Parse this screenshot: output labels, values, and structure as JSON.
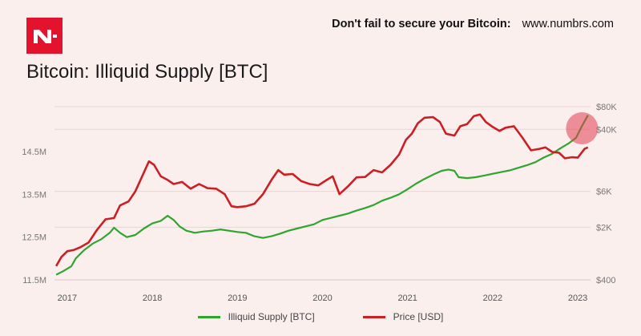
{
  "header": {
    "logo_icon": "numbrs-logo-icon",
    "promo_text": "Don't fail to secure your Bitcoin:",
    "promo_url": "www.numbrs.com",
    "brand_color": "#e3122d"
  },
  "chart_data": {
    "type": "line",
    "title": "Bitcoin: Illiquid Supply [BTC]",
    "x_tick_labels": [
      "2017",
      "2018",
      "2019",
      "2020",
      "2021",
      "2022",
      "2023"
    ],
    "x_range": [
      2016.85,
      2023.15
    ],
    "y_left": {
      "label": "",
      "ticks": [
        11.5,
        12.5,
        13.5,
        14.5
      ],
      "tick_labels": [
        "11.5M",
        "12.5M",
        "13.5M",
        "14.5M"
      ],
      "range": [
        11.5,
        15.55
      ],
      "unit": "M BTC"
    },
    "y_right": {
      "label": "",
      "scale": "log",
      "ticks": [
        400,
        2000,
        6000,
        40000,
        80000
      ],
      "tick_labels": [
        "$400",
        "$2K",
        "$6K",
        "$40K",
        "$80K"
      ],
      "range": [
        400,
        80000
      ]
    },
    "grid": true,
    "series": [
      {
        "name": "Illiquid Supply [BTC]",
        "color": "#2ea62e",
        "axis": "left",
        "points": [
          [
            2016.87,
            11.62
          ],
          [
            2016.95,
            11.7
          ],
          [
            2017.05,
            11.82
          ],
          [
            2017.1,
            12.0
          ],
          [
            2017.2,
            12.2
          ],
          [
            2017.3,
            12.35
          ],
          [
            2017.4,
            12.45
          ],
          [
            2017.5,
            12.6
          ],
          [
            2017.55,
            12.72
          ],
          [
            2017.62,
            12.6
          ],
          [
            2017.7,
            12.5
          ],
          [
            2017.8,
            12.55
          ],
          [
            2017.9,
            12.7
          ],
          [
            2018.0,
            12.82
          ],
          [
            2018.1,
            12.88
          ],
          [
            2018.18,
            13.0
          ],
          [
            2018.25,
            12.9
          ],
          [
            2018.32,
            12.75
          ],
          [
            2018.4,
            12.65
          ],
          [
            2018.5,
            12.6
          ],
          [
            2018.6,
            12.63
          ],
          [
            2018.7,
            12.65
          ],
          [
            2018.8,
            12.68
          ],
          [
            2018.9,
            12.65
          ],
          [
            2019.0,
            12.62
          ],
          [
            2019.1,
            12.6
          ],
          [
            2019.2,
            12.52
          ],
          [
            2019.3,
            12.48
          ],
          [
            2019.4,
            12.52
          ],
          [
            2019.5,
            12.58
          ],
          [
            2019.6,
            12.65
          ],
          [
            2019.7,
            12.7
          ],
          [
            2019.8,
            12.75
          ],
          [
            2019.9,
            12.8
          ],
          [
            2020.0,
            12.9
          ],
          [
            2020.1,
            12.95
          ],
          [
            2020.2,
            13.0
          ],
          [
            2020.3,
            13.05
          ],
          [
            2020.4,
            13.12
          ],
          [
            2020.5,
            13.18
          ],
          [
            2020.6,
            13.25
          ],
          [
            2020.7,
            13.35
          ],
          [
            2020.8,
            13.42
          ],
          [
            2020.9,
            13.5
          ],
          [
            2021.0,
            13.62
          ],
          [
            2021.1,
            13.75
          ],
          [
            2021.2,
            13.86
          ],
          [
            2021.3,
            13.96
          ],
          [
            2021.4,
            14.05
          ],
          [
            2021.48,
            14.08
          ],
          [
            2021.55,
            14.05
          ],
          [
            2021.6,
            13.9
          ],
          [
            2021.7,
            13.88
          ],
          [
            2021.8,
            13.9
          ],
          [
            2021.9,
            13.94
          ],
          [
            2022.0,
            13.98
          ],
          [
            2022.1,
            14.02
          ],
          [
            2022.2,
            14.06
          ],
          [
            2022.3,
            14.12
          ],
          [
            2022.4,
            14.18
          ],
          [
            2022.5,
            14.25
          ],
          [
            2022.6,
            14.36
          ],
          [
            2022.7,
            14.45
          ],
          [
            2022.8,
            14.58
          ],
          [
            2022.9,
            14.7
          ],
          [
            2022.98,
            14.82
          ],
          [
            2023.05,
            15.1
          ],
          [
            2023.12,
            15.35
          ]
        ]
      },
      {
        "name": "Price [USD]",
        "color": "#cc1f24",
        "axis": "right",
        "points": [
          [
            2016.87,
            610
          ],
          [
            2016.93,
            800
          ],
          [
            2017.0,
            960
          ],
          [
            2017.08,
            1000
          ],
          [
            2017.15,
            1080
          ],
          [
            2017.25,
            1250
          ],
          [
            2017.35,
            1850
          ],
          [
            2017.45,
            2550
          ],
          [
            2017.55,
            2650
          ],
          [
            2017.62,
            3900
          ],
          [
            2017.72,
            4400
          ],
          [
            2017.8,
            6000
          ],
          [
            2017.88,
            9500
          ],
          [
            2017.96,
            15000
          ],
          [
            2018.02,
            13500
          ],
          [
            2018.1,
            9500
          ],
          [
            2018.18,
            8500
          ],
          [
            2018.25,
            7500
          ],
          [
            2018.35,
            8000
          ],
          [
            2018.45,
            6500
          ],
          [
            2018.55,
            7500
          ],
          [
            2018.65,
            6600
          ],
          [
            2018.75,
            6500
          ],
          [
            2018.85,
            5500
          ],
          [
            2018.93,
            3800
          ],
          [
            2019.0,
            3700
          ],
          [
            2019.1,
            3800
          ],
          [
            2019.2,
            4100
          ],
          [
            2019.3,
            5500
          ],
          [
            2019.4,
            8500
          ],
          [
            2019.48,
            11500
          ],
          [
            2019.55,
            10000
          ],
          [
            2019.65,
            10200
          ],
          [
            2019.75,
            8200
          ],
          [
            2019.85,
            7500
          ],
          [
            2019.95,
            7200
          ],
          [
            2020.05,
            8500
          ],
          [
            2020.12,
            9500
          ],
          [
            2020.2,
            5500
          ],
          [
            2020.3,
            7000
          ],
          [
            2020.4,
            9200
          ],
          [
            2020.5,
            9300
          ],
          [
            2020.6,
            11500
          ],
          [
            2020.7,
            10700
          ],
          [
            2020.8,
            13500
          ],
          [
            2020.9,
            18500
          ],
          [
            2020.98,
            29000
          ],
          [
            2021.05,
            35000
          ],
          [
            2021.12,
            48000
          ],
          [
            2021.2,
            57000
          ],
          [
            2021.3,
            58000
          ],
          [
            2021.38,
            50000
          ],
          [
            2021.45,
            35000
          ],
          [
            2021.55,
            33000
          ],
          [
            2021.62,
            44000
          ],
          [
            2021.7,
            47000
          ],
          [
            2021.78,
            60000
          ],
          [
            2021.85,
            63000
          ],
          [
            2021.92,
            50000
          ],
          [
            2022.0,
            43000
          ],
          [
            2022.08,
            38000
          ],
          [
            2022.15,
            42000
          ],
          [
            2022.25,
            44000
          ],
          [
            2022.35,
            31000
          ],
          [
            2022.45,
            21000
          ],
          [
            2022.55,
            22000
          ],
          [
            2022.62,
            23000
          ],
          [
            2022.7,
            20000
          ],
          [
            2022.78,
            19500
          ],
          [
            2022.85,
            16500
          ],
          [
            2022.93,
            17000
          ],
          [
            2023.0,
            16800
          ],
          [
            2023.08,
            22000
          ],
          [
            2023.12,
            23000
          ]
        ]
      }
    ],
    "annotation": "highlight-circle"
  }
}
